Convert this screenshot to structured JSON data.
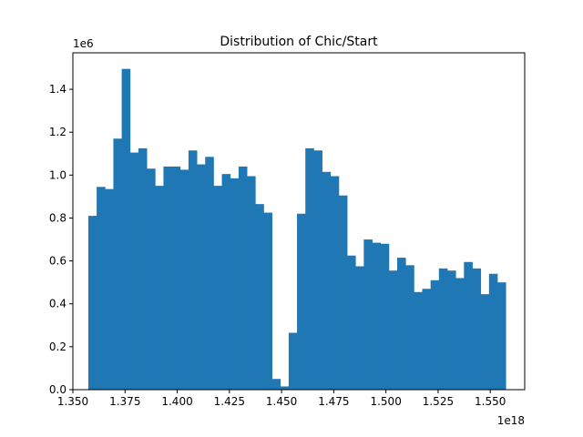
{
  "chart_data": {
    "type": "bar",
    "title": "Distribution of Chic/Start",
    "xlabel": "",
    "ylabel": "",
    "x_offset_label": "1e18",
    "y_offset_label": "1e6",
    "xlim": [
      1.35,
      1.5665
    ],
    "ylim": [
      0,
      1.57
    ],
    "x_ticks": [
      1.35,
      1.375,
      1.4,
      1.425,
      1.45,
      1.475,
      1.5,
      1.525,
      1.55
    ],
    "x_tick_labels": [
      "1.350",
      "1.375",
      "1.400",
      "1.425",
      "1.450",
      "1.475",
      "1.500",
      "1.525",
      "1.550"
    ],
    "y_ticks": [
      0.0,
      0.2,
      0.4,
      0.6,
      0.8,
      1.0,
      1.2,
      1.4
    ],
    "y_tick_labels": [
      "0.0",
      "0.2",
      "0.4",
      "0.6",
      "0.8",
      "1.0",
      "1.2",
      "1.4"
    ],
    "bin_edges": [
      1.3574,
      1.3614,
      1.3654,
      1.3694,
      1.3734,
      1.3774,
      1.3814,
      1.3854,
      1.3894,
      1.3934,
      1.3974,
      1.4014,
      1.4054,
      1.4094,
      1.4134,
      1.4174,
      1.4214,
      1.4254,
      1.4294,
      1.4334,
      1.4374,
      1.4414,
      1.4454,
      1.4494,
      1.4534,
      1.4574,
      1.4614,
      1.4654,
      1.4694,
      1.4734,
      1.4774,
      1.4814,
      1.4854,
      1.4894,
      1.4934,
      1.4974,
      1.5014,
      1.5054,
      1.5094,
      1.5134,
      1.5174,
      1.5214,
      1.5254,
      1.5294,
      1.5334,
      1.5374,
      1.5414,
      1.5454,
      1.5494,
      1.5534,
      1.5574
    ],
    "values": [
      0.81,
      0.945,
      0.935,
      1.17,
      1.495,
      1.105,
      1.125,
      1.03,
      0.95,
      1.04,
      1.04,
      1.025,
      1.115,
      1.05,
      1.085,
      0.95,
      1.005,
      0.985,
      1.04,
      0.995,
      0.865,
      0.825,
      0.05,
      0.015,
      0.265,
      0.82,
      1.125,
      1.115,
      1.015,
      0.995,
      0.905,
      0.625,
      0.575,
      0.7,
      0.685,
      0.68,
      0.555,
      0.615,
      0.58,
      0.455,
      0.47,
      0.51,
      0.565,
      0.555,
      0.52,
      0.595,
      0.565,
      0.445,
      0.54,
      0.5
    ],
    "bar_color": "#1f77b4",
    "grid": false
  }
}
